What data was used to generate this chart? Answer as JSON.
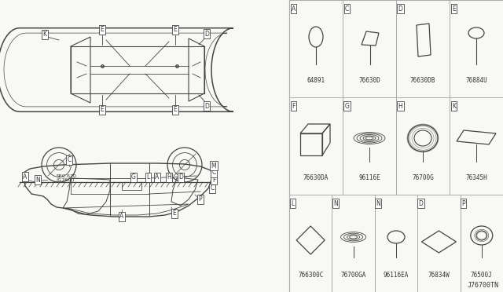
{
  "bg_color": "#f8f8f4",
  "line_color": "#444444",
  "grid_line_color": "#aaaaaa",
  "text_color": "#333333",
  "label_bg": "#ffffff",
  "parts_row0": [
    {
      "id": "A",
      "part_num": "64891",
      "shape": "oval_stick"
    },
    {
      "id": "C",
      "part_num": "76630D",
      "shape": "quad_stick"
    },
    {
      "id": "D",
      "part_num": "76630DB",
      "shape": "tall_quad"
    },
    {
      "id": "E",
      "part_num": "76884U",
      "shape": "circle_stick"
    }
  ],
  "parts_row1": [
    {
      "id": "F",
      "part_num": "76630DA",
      "shape": "box_3d"
    },
    {
      "id": "G",
      "part_num": "96116E",
      "shape": "grommet"
    },
    {
      "id": "H",
      "part_num": "76700G",
      "shape": "ring"
    },
    {
      "id": "K",
      "part_num": "76345H",
      "shape": "flat_rect"
    }
  ],
  "parts_row2": [
    {
      "id": "L",
      "part_num": "766300C",
      "shape": "diamond_sq"
    },
    {
      "id": "N",
      "part_num": "76700GA",
      "shape": "grommet2"
    },
    {
      "id": "N",
      "part_num": "96116EA",
      "shape": "oval_plain"
    },
    {
      "id": "D",
      "part_num": "76834W",
      "shape": "diamond_wide"
    },
    {
      "id": "P",
      "part_num": "76500J",
      "shape": "grommet3"
    }
  ],
  "footer": "J76700TN"
}
